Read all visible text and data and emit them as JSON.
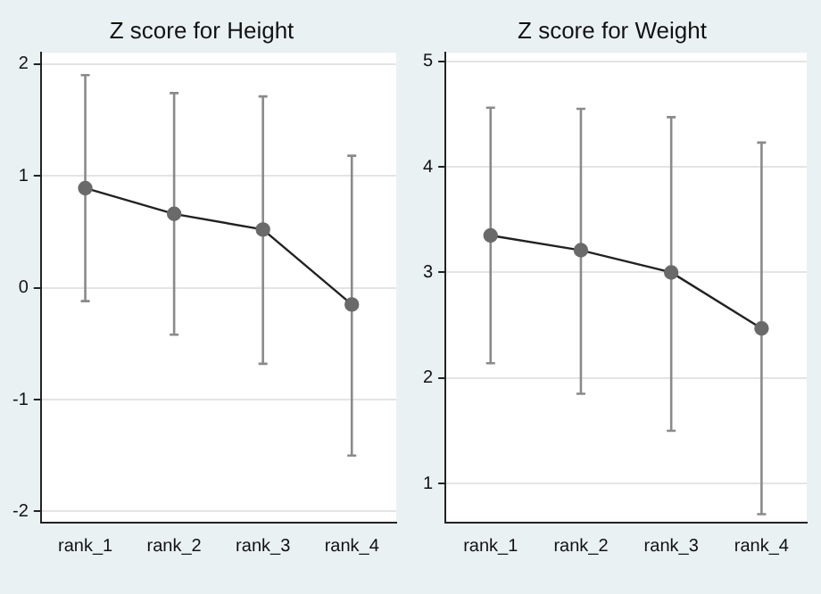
{
  "chart_data": [
    {
      "type": "line",
      "title": "Z score for Height",
      "categories": [
        "rank_1",
        "rank_2",
        "rank_3",
        "rank_4"
      ],
      "series": [
        {
          "color": "#222222",
          "values": [
            0.89,
            0.66,
            0.52,
            -0.15
          ],
          "errors": [
            [
              -0.12,
              1.9
            ],
            [
              -0.42,
              1.74
            ],
            [
              -0.68,
              1.71
            ],
            [
              -1.5,
              1.18
            ]
          ]
        }
      ],
      "ylim": [
        -2.1,
        2.1
      ],
      "yticks": [
        -2,
        -1,
        0,
        1,
        2
      ],
      "grid": "y",
      "marker": "circle",
      "legend": false
    },
    {
      "type": "line",
      "title": "Z score for Weight",
      "categories": [
        "rank_1",
        "rank_2",
        "rank_3",
        "rank_4"
      ],
      "series": [
        {
          "color": "#222222",
          "values": [
            3.35,
            3.21,
            3.0,
            2.47
          ],
          "errors": [
            [
              2.14,
              4.56
            ],
            [
              1.85,
              4.55
            ],
            [
              1.5,
              4.47
            ],
            [
              0.71,
              4.23
            ]
          ]
        }
      ],
      "ylim": [
        0.63,
        5.08
      ],
      "yticks": [
        1,
        2,
        3,
        4,
        5
      ],
      "grid": "y",
      "marker": "circle",
      "legend": false
    }
  ]
}
